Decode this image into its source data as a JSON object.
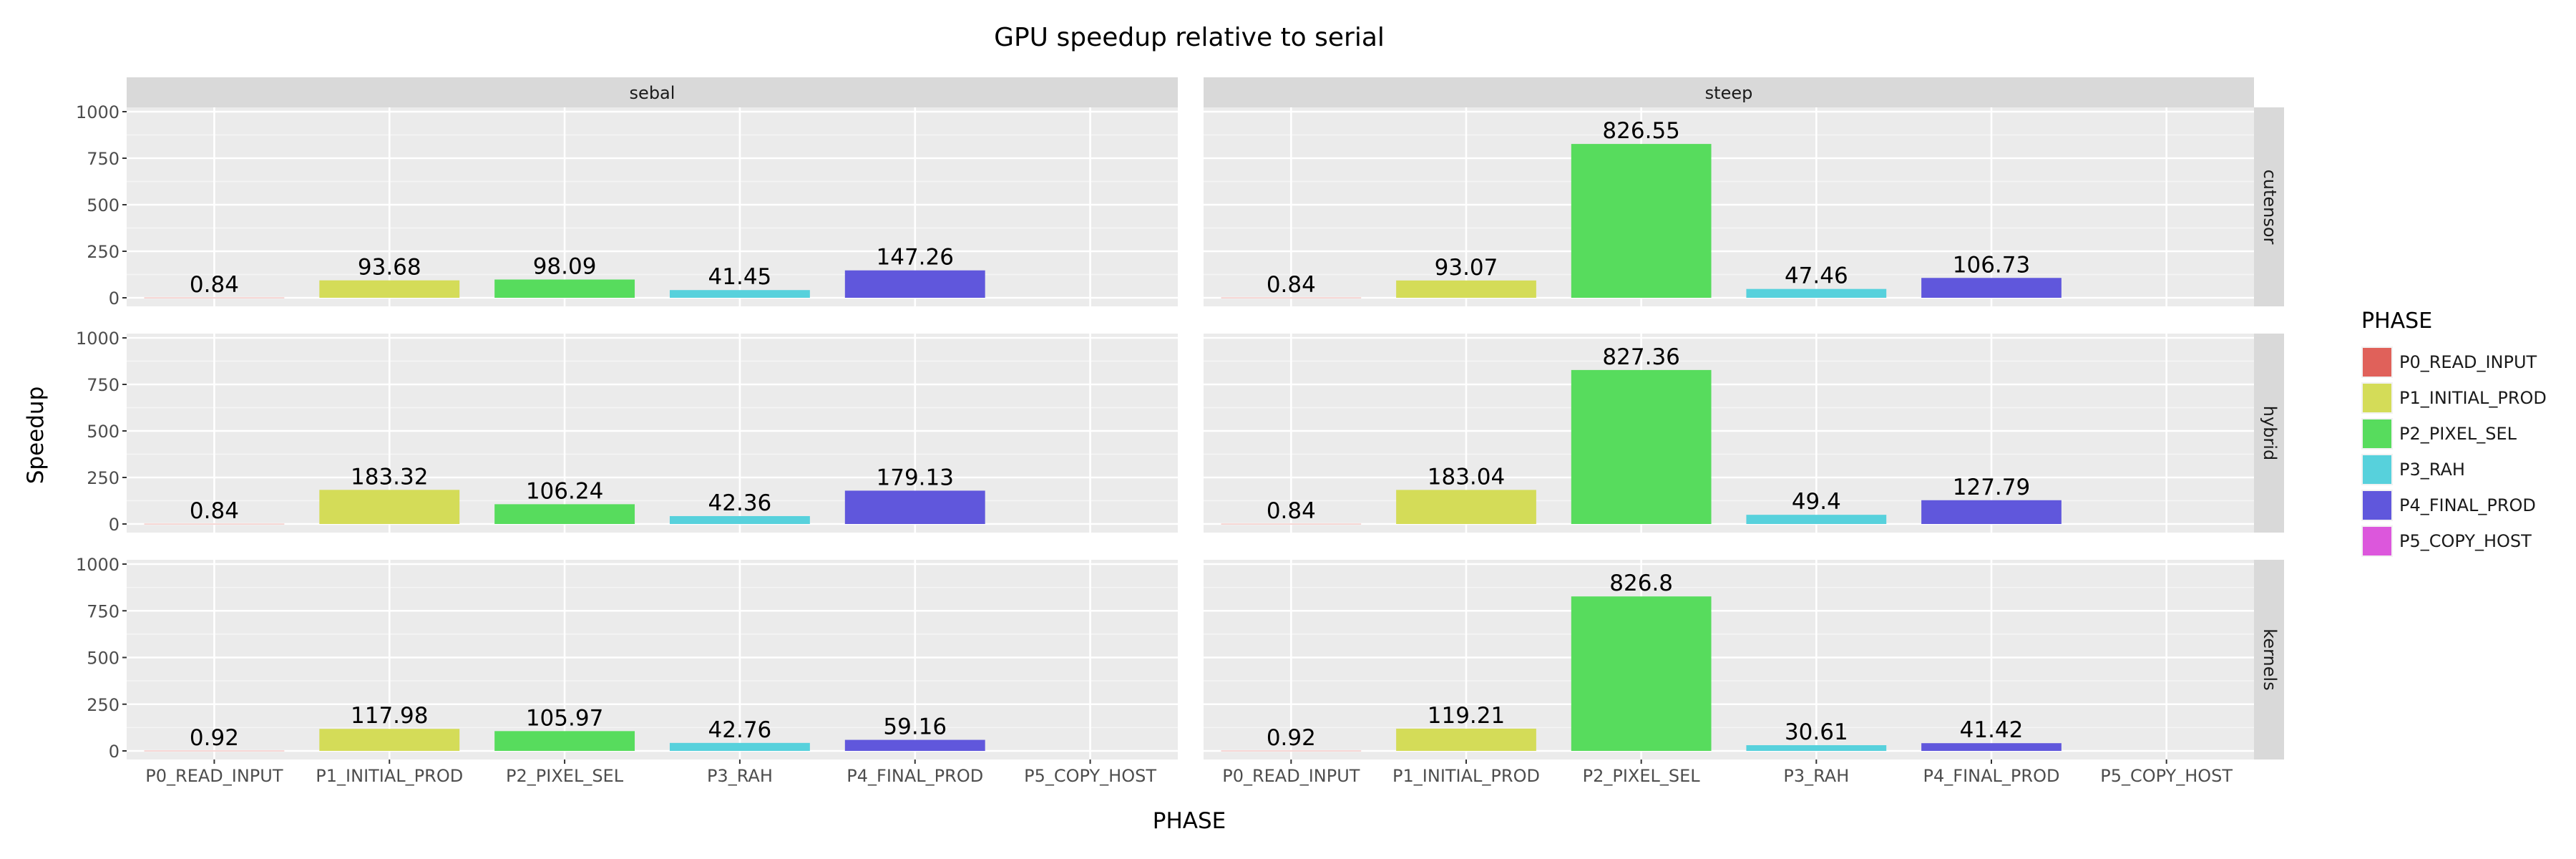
{
  "chart_data": {
    "type": "bar",
    "title": "GPU speedup relative to serial",
    "xlabel": "PHASE",
    "ylabel": "Speedup",
    "ylim": [
      0,
      1000
    ],
    "yticks": [
      "0",
      "250",
      "500",
      "750",
      "1000"
    ],
    "ytick_values": [
      0,
      250,
      500,
      750,
      1000
    ],
    "categories": [
      "P0_READ_INPUT",
      "P1_INITIAL_PROD",
      "P2_PIXEL_SEL",
      "P3_RAH",
      "P4_FINAL_PROD",
      "P5_COPY_HOST"
    ],
    "facet_columns": [
      "sebal",
      "steep"
    ],
    "facet_rows": [
      "cutensor",
      "hybrid",
      "kernels"
    ],
    "legend": {
      "title": "PHASE",
      "placement": "right",
      "entries": [
        "P0_READ_INPUT",
        "P1_INITIAL_PROD",
        "P2_PIXEL_SEL",
        "P3_RAH",
        "P4_FINAL_PROD",
        "P5_COPY_HOST"
      ],
      "colors": [
        "#e0615a",
        "#d4dc58",
        "#57dc5d",
        "#57d1dc",
        "#6057dc",
        "#dc57dc"
      ]
    },
    "panels": [
      {
        "column": "sebal",
        "row": "cutensor",
        "values": [
          0.84,
          93.68,
          98.09,
          41.45,
          147.26,
          null
        ],
        "labels": [
          "0.84",
          "93.68",
          "98.09",
          "41.45",
          "147.26",
          ""
        ]
      },
      {
        "column": "steep",
        "row": "cutensor",
        "values": [
          0.84,
          93.07,
          826.55,
          47.46,
          106.73,
          null
        ],
        "labels": [
          "0.84",
          "93.07",
          "826.55",
          "47.46",
          "106.73",
          ""
        ]
      },
      {
        "column": "sebal",
        "row": "hybrid",
        "values": [
          0.84,
          183.32,
          106.24,
          42.36,
          179.13,
          null
        ],
        "labels": [
          "0.84",
          "183.32",
          "106.24",
          "42.36",
          "179.13",
          ""
        ]
      },
      {
        "column": "steep",
        "row": "hybrid",
        "values": [
          0.84,
          183.04,
          827.36,
          49.4,
          127.79,
          null
        ],
        "labels": [
          "0.84",
          "183.04",
          "827.36",
          "49.4",
          "127.79",
          ""
        ]
      },
      {
        "column": "sebal",
        "row": "kernels",
        "values": [
          0.92,
          117.98,
          105.97,
          42.76,
          59.16,
          null
        ],
        "labels": [
          "0.92",
          "117.98",
          "105.97",
          "42.76",
          "59.16",
          ""
        ]
      },
      {
        "column": "steep",
        "row": "kernels",
        "values": [
          0.92,
          119.21,
          826.8,
          30.61,
          41.42,
          null
        ],
        "labels": [
          "0.92",
          "119.21",
          "826.8",
          "30.61",
          "41.42",
          ""
        ]
      }
    ]
  }
}
